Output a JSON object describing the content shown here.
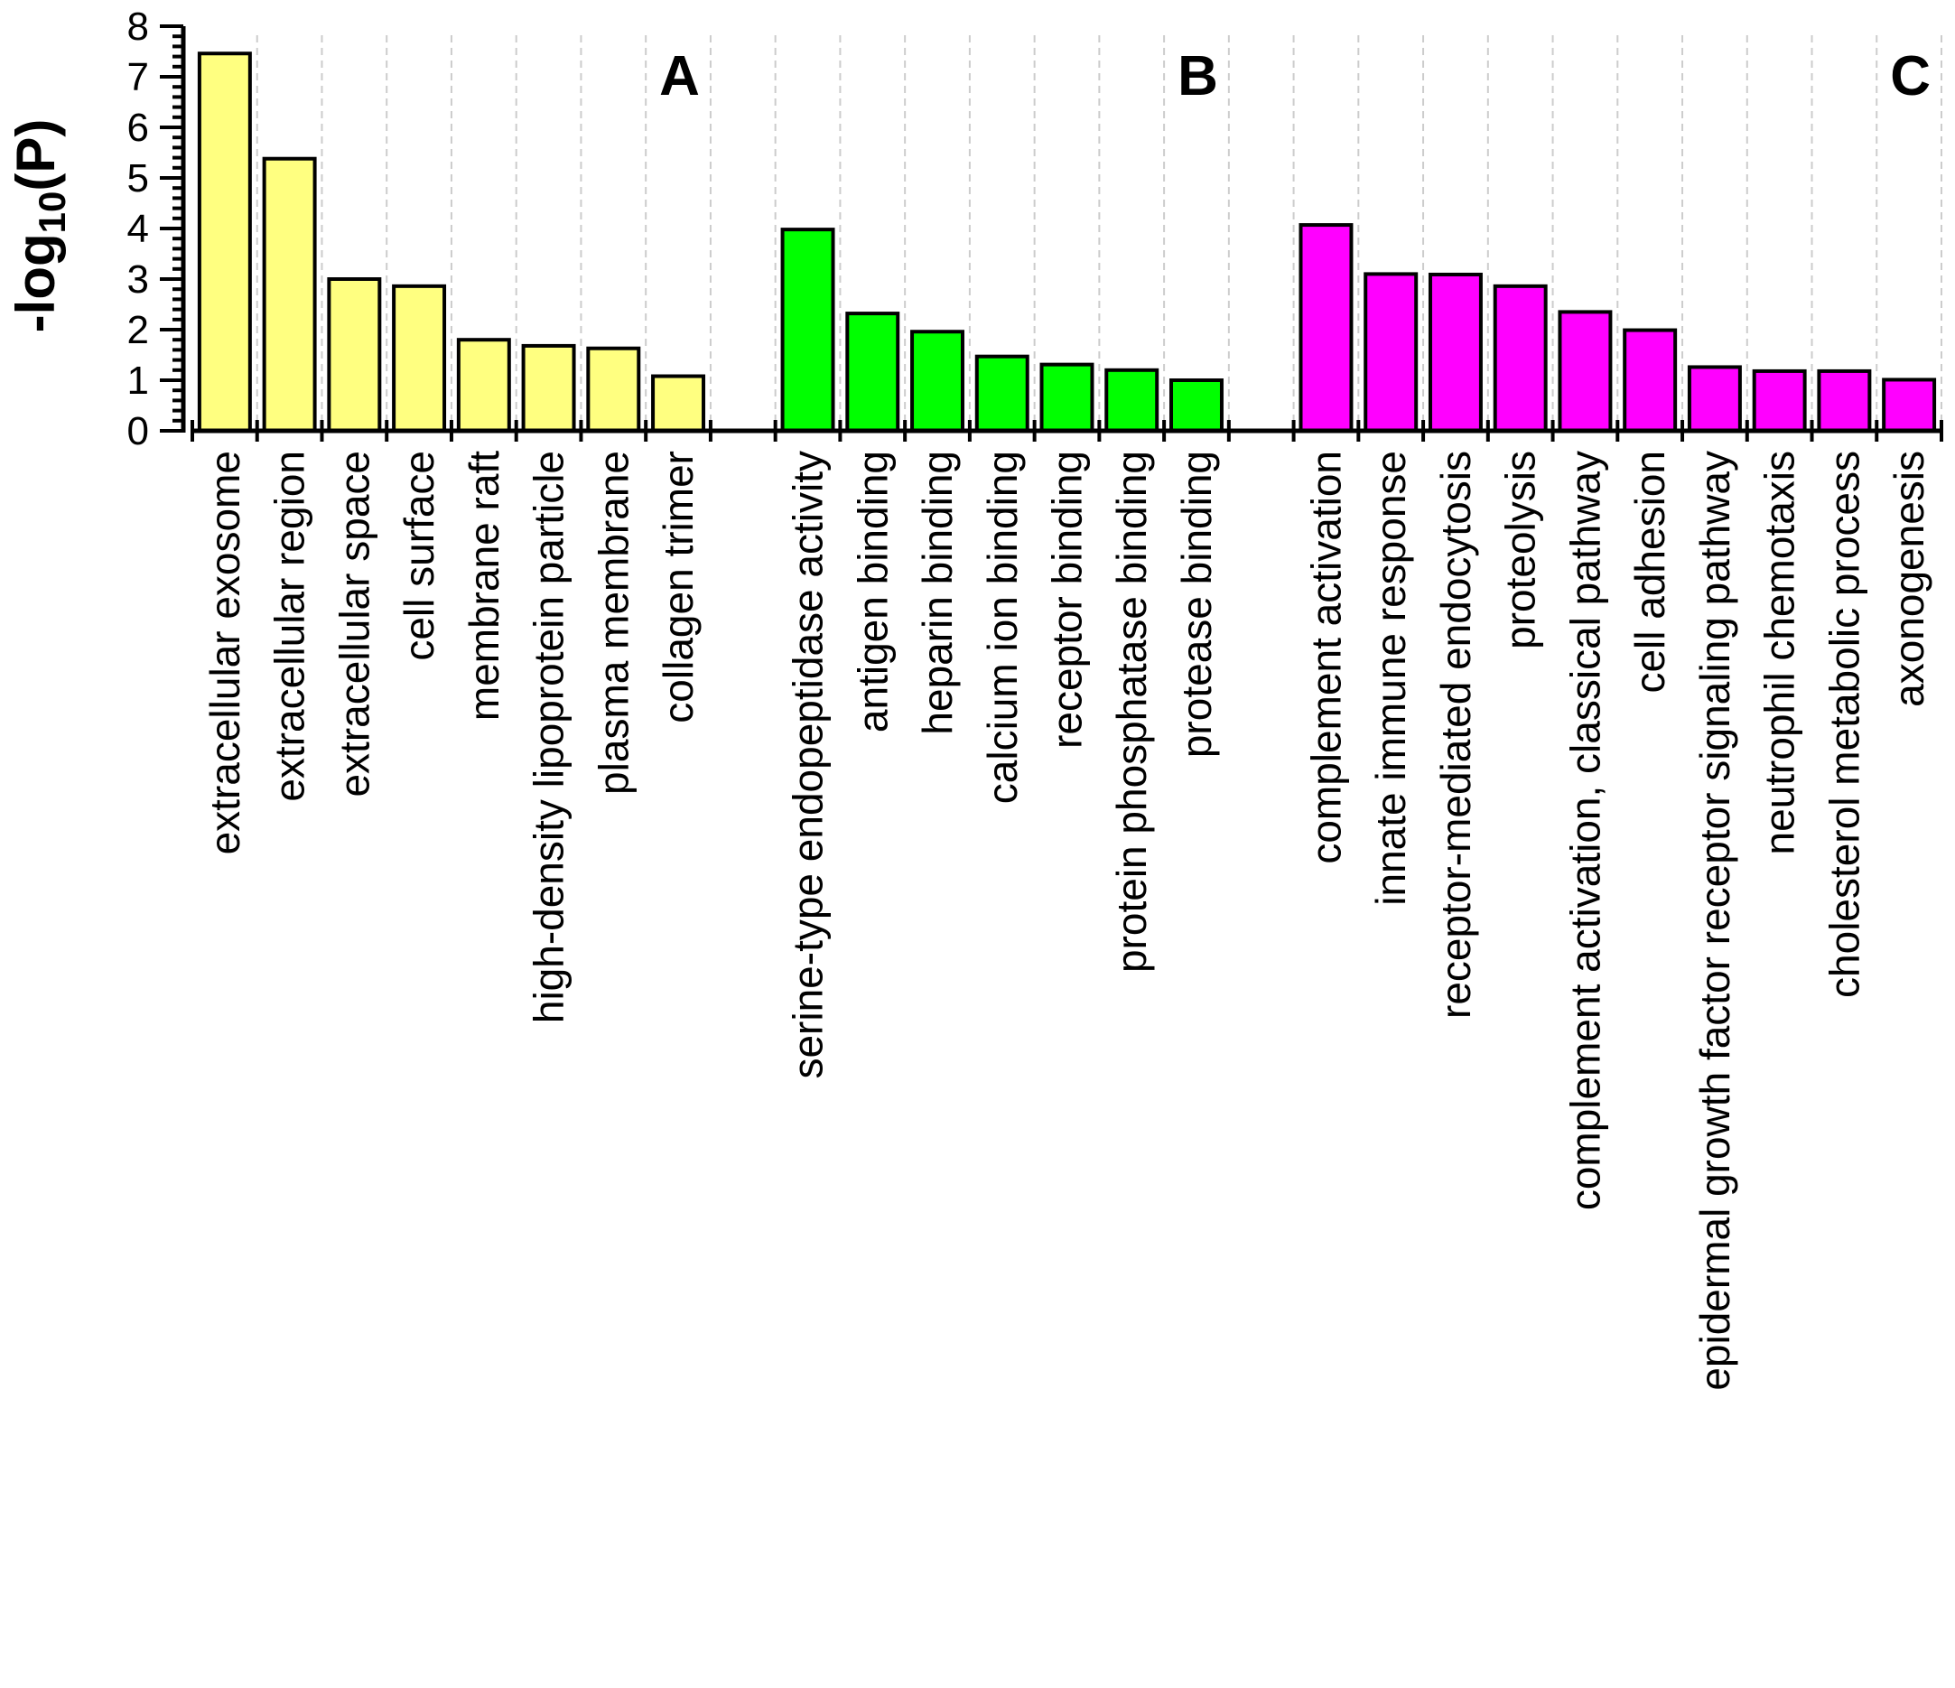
{
  "chart_data": {
    "type": "bar",
    "title": "",
    "xlabel": "",
    "ylabel": "-log10(P)",
    "ylabel_parts": {
      "prefix": "-log",
      "subscript": "10",
      "suffix": "(P)"
    },
    "ylim": [
      0,
      8
    ],
    "yticks": [
      0,
      1,
      2,
      3,
      4,
      5,
      6,
      7,
      8
    ],
    "grid": "vertical dashed",
    "groups": [
      {
        "name": "A",
        "color": "#FFFF80",
        "categories": [
          "extracellular exosome",
          "extracellular region",
          "extracellular space",
          "cell surface",
          "membrane raft",
          "high-density lipoprotein particle",
          "plasma membrane",
          "collagen trimer"
        ],
        "values": [
          7.46,
          5.38,
          3.0,
          2.86,
          1.8,
          1.68,
          1.63,
          1.08
        ]
      },
      {
        "name": "B",
        "color": "#00FF00",
        "categories": [
          "serine-type endopeptidase activity",
          "antigen binding",
          "heparin binding",
          "calcium ion binding",
          "receptor binding",
          "protein phosphatase binding",
          "protease binding"
        ],
        "values": [
          3.98,
          2.32,
          1.96,
          1.47,
          1.31,
          1.2,
          1.0
        ]
      },
      {
        "name": "C",
        "color": "#FF00FF",
        "categories": [
          "complement activation",
          "innate immune response",
          "receptor-mediated endocytosis",
          "proteolysis",
          "complement activation, classical pathway",
          "cell adhesion",
          "epidermal growth factor receptor signaling pathway",
          "neutrophil chemotaxis",
          "cholesterol metabolic process",
          "axonogenesis"
        ],
        "values": [
          4.07,
          3.1,
          3.09,
          2.86,
          2.35,
          1.99,
          1.26,
          1.18,
          1.18,
          1.01
        ]
      }
    ]
  }
}
